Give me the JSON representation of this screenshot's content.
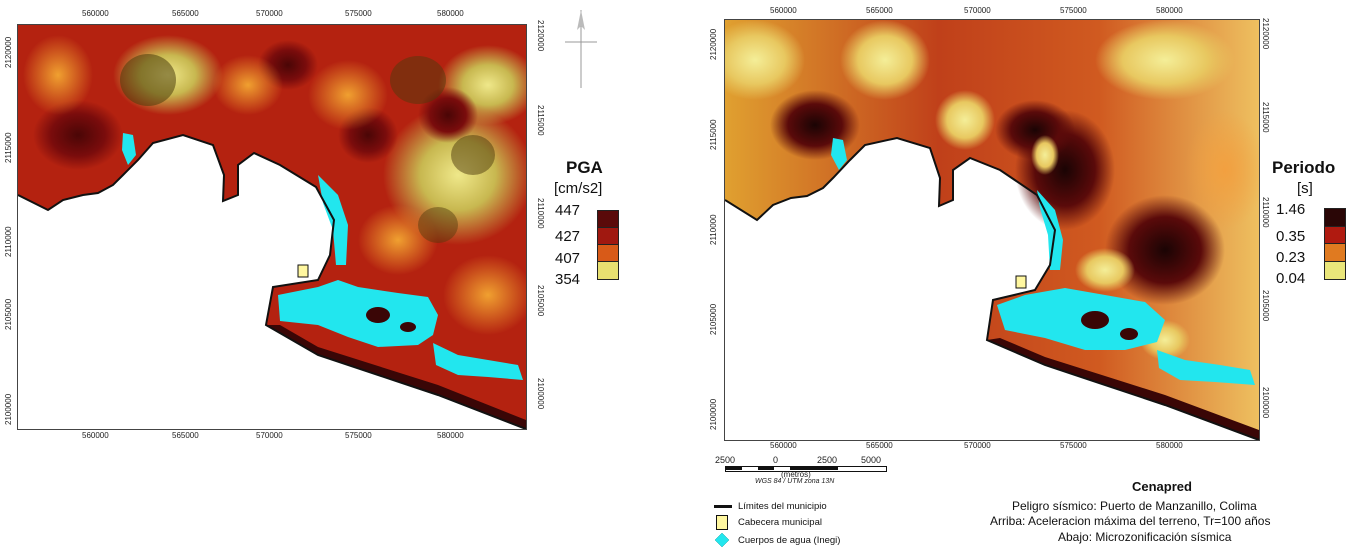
{
  "left_map": {
    "x_ticks": [
      "560000",
      "565000",
      "570000",
      "575000",
      "580000"
    ],
    "y_ticks": [
      "2120000",
      "2115000",
      "2110000",
      "2105000",
      "2100000"
    ],
    "legend": {
      "title": "PGA",
      "unit": "[cm/s2]",
      "values": [
        "447",
        "427",
        "407",
        "354"
      ],
      "colors": [
        "#5a0a0a",
        "#a01810",
        "#d85a18",
        "#e8e070"
      ]
    }
  },
  "right_map": {
    "x_ticks": [
      "560000",
      "565000",
      "570000",
      "575000",
      "580000"
    ],
    "y_ticks": [
      "2120000",
      "2115000",
      "2110000",
      "2105000",
      "2100000"
    ],
    "legend": {
      "title": "Periodo",
      "unit": "[s]",
      "values": [
        "1.46",
        "0.35",
        "0.23",
        "0.04"
      ],
      "colors": [
        "#2a0606",
        "#b01a10",
        "#e07a20",
        "#eae67a"
      ]
    }
  },
  "scale": {
    "labels": [
      "2500",
      "0",
      "2500",
      "5000"
    ],
    "unit": "(metros)",
    "projection": "WGS 84 / UTM zona 13N"
  },
  "map_legend": {
    "items": [
      {
        "label": "Límites del municipio",
        "icon": "boundary-line-icon"
      },
      {
        "label": "Cabecera municipal",
        "icon": "municipal-seat-icon"
      },
      {
        "label": "Cuerpos de agua (Inegi)",
        "icon": "water-body-icon"
      }
    ]
  },
  "credits": {
    "title": "Cenapred",
    "lines": [
      "Peligro sísmico: Puerto de Manzanillo, Colima",
      "Arriba: Aceleracion máxima del terreno, Tr=100 años",
      "Abajo: Microzonificación sísmica"
    ]
  },
  "colors": {
    "water": "#22e6ee",
    "coast": "#111111",
    "sea": "#ffffff",
    "seat": "#fff7a0"
  }
}
